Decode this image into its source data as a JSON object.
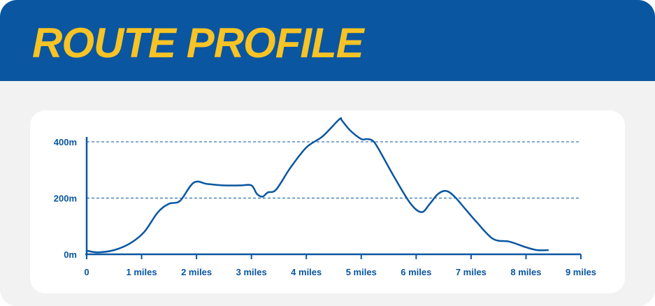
{
  "header": {
    "title": "ROUTE PROFILE"
  },
  "colors": {
    "header_bg": "#0a56a0",
    "title": "#f7c325",
    "line": "#0a56a0",
    "card_bg": "#f2f2f2",
    "panel_bg": "#ffffff"
  },
  "chart_data": {
    "type": "line",
    "title": "",
    "xlabel": "",
    "ylabel": "",
    "xlim": [
      0,
      9
    ],
    "ylim": [
      0,
      400
    ],
    "grid": "horizontal dashed at 200m and 400m",
    "x_ticks": [
      {
        "value": 0,
        "label": "0"
      },
      {
        "value": 1,
        "label": "1 miles"
      },
      {
        "value": 2,
        "label": "2 miles"
      },
      {
        "value": 3,
        "label": "3 miles"
      },
      {
        "value": 4,
        "label": "4 miles"
      },
      {
        "value": 5,
        "label": "5 miles"
      },
      {
        "value": 6,
        "label": "6 miles"
      },
      {
        "value": 7,
        "label": "7 miles"
      },
      {
        "value": 8,
        "label": "8 miles"
      },
      {
        "value": 9,
        "label": "9 miles"
      }
    ],
    "y_ticks": [
      {
        "value": 0,
        "label": "0m"
      },
      {
        "value": 200,
        "label": "200m"
      },
      {
        "value": 400,
        "label": "400m"
      }
    ],
    "series": [
      {
        "x": [
          0,
          0.2,
          0.5,
          0.8,
          1.05,
          1.3,
          1.5,
          1.7,
          1.95,
          2.2,
          2.5,
          2.8,
          3.0,
          3.1,
          3.2,
          3.3,
          3.45,
          3.7,
          4.0,
          4.3,
          4.6,
          4.65,
          4.8,
          5.0,
          5.1,
          5.2,
          5.3,
          5.6,
          5.9,
          6.1,
          6.25,
          6.4,
          6.55,
          6.7,
          6.9,
          7.1,
          7.4,
          7.7,
          8.0,
          8.2,
          8.4
        ],
        "y": [
          13,
          7,
          15,
          40,
          80,
          150,
          180,
          190,
          255,
          250,
          245,
          245,
          245,
          215,
          205,
          220,
          230,
          305,
          380,
          420,
          480,
          475,
          440,
          410,
          410,
          405,
          380,
          275,
          180,
          150,
          180,
          215,
          225,
          205,
          160,
          115,
          55,
          45,
          25,
          15,
          15
        ]
      }
    ]
  }
}
